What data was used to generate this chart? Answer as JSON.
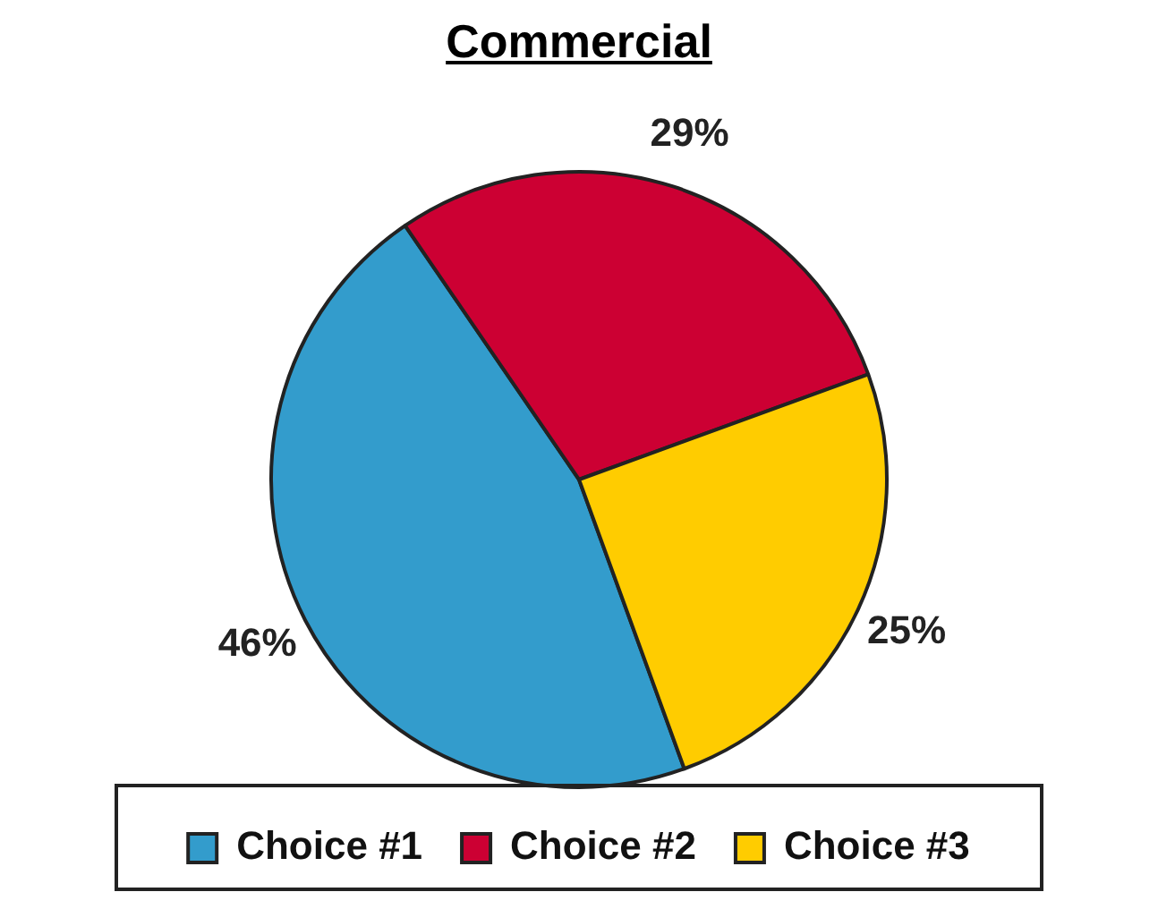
{
  "chart_data": {
    "type": "pie",
    "title": "Commercial",
    "categories": [
      "Choice #1",
      "Choice #2",
      "Choice #3"
    ],
    "values": [
      46,
      29,
      25
    ],
    "colors": [
      "#339ccc",
      "#cc0033",
      "#ffcc00"
    ],
    "value_labels": [
      "46%",
      "29%",
      "25%"
    ],
    "legend": "bottom"
  }
}
